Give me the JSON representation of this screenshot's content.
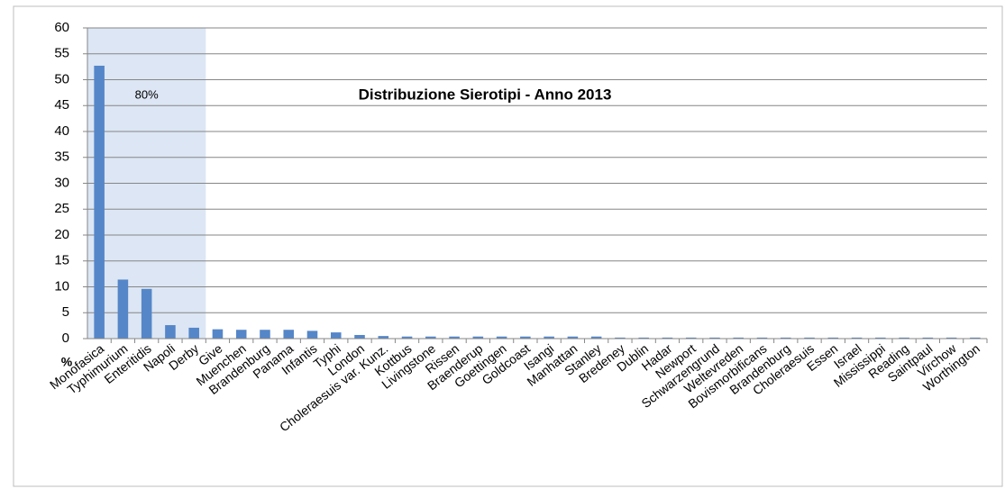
{
  "chart_data": {
    "type": "bar",
    "title": "Distribuzione Sierotipi - Anno 2013",
    "y_label": "%",
    "categories": [
      "Monofasica",
      "Typhimurium",
      "Enteritidis",
      "Napoli",
      "Derby",
      "Give",
      "Muenchen",
      "Brandenburg",
      "Panama",
      "Infantis",
      "Typhi",
      "London",
      "Choleraesuis var. Kunz.",
      "Kottbus",
      "Livingstone",
      "Rissen",
      "Braenderup",
      "Goettingen",
      "Goldcoast",
      "Isangi",
      "Manhattan",
      "Stanley",
      "Bredeney",
      "Dublin",
      "Hadar",
      "Newport",
      "Schwarzengrund",
      "Weltevreden",
      "Bovismorbificans",
      "Brandenburg",
      "Choleraesuis",
      "Essen",
      "Israel",
      "Mississippi",
      "Reading",
      "Saintpaul",
      "Virchow",
      "Worthington"
    ],
    "values": [
      52.7,
      11.4,
      9.6,
      2.6,
      2.1,
      1.8,
      1.7,
      1.7,
      1.7,
      1.5,
      1.2,
      0.7,
      0.5,
      0.4,
      0.4,
      0.4,
      0.4,
      0.4,
      0.4,
      0.4,
      0.4,
      0.4,
      0.2,
      0.2,
      0.2,
      0.2,
      0.2,
      0.2,
      0.2,
      0.2,
      0.2,
      0.2,
      0.2,
      0.2,
      0.2,
      0.2,
      0.2,
      0.2
    ],
    "color": "#5586c8",
    "highlight": {
      "label": "80%",
      "first": 0,
      "last": 4,
      "color": "#dce6f4"
    },
    "ylim": [
      0,
      60
    ],
    "yticks": [
      0,
      5,
      10,
      15,
      20,
      25,
      30,
      35,
      40,
      45,
      50,
      55,
      60
    ],
    "grid": true
  }
}
